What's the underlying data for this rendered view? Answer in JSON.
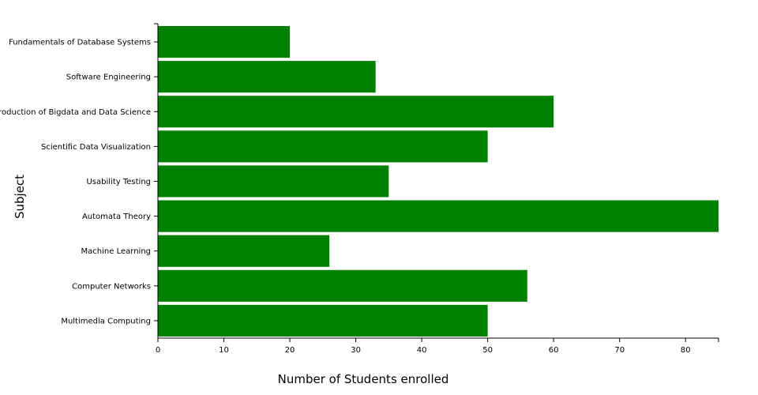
{
  "chart_data": {
    "type": "bar",
    "orientation": "horizontal",
    "categories": [
      "Fundamentals of Database Systems",
      "Software Engineering",
      "Introduction of Bigdata and Data Science",
      "Scientific Data Visualization",
      "Usability Testing",
      "Automata Theory",
      "Machine Learning",
      "Computer Networks",
      "Multimedia Computing"
    ],
    "values": [
      20,
      33,
      60,
      50,
      35,
      85,
      26,
      56,
      50
    ],
    "xlabel": "Number of Students enrolled",
    "ylabel": "Subject",
    "xlim": [
      0,
      85
    ],
    "xticks": [
      0,
      10,
      20,
      30,
      40,
      50,
      60,
      70,
      80
    ],
    "bar_color": "#008000",
    "grid": false
  }
}
